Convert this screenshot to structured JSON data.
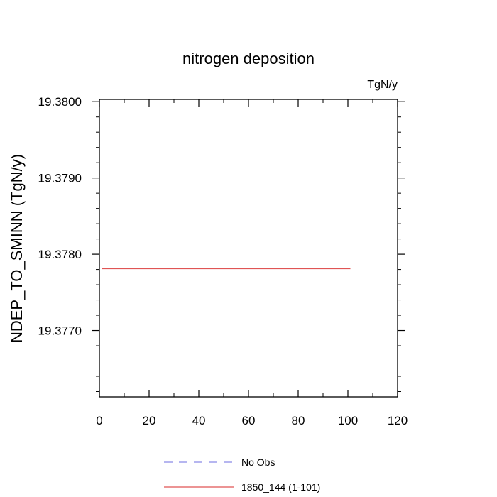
{
  "chart_data": {
    "type": "line",
    "title": "nitrogen deposition",
    "units_label": "TgN/y",
    "ylabel": "NDEP_TO_SMINN  (TgN/y)",
    "xlabel": "",
    "xlim": [
      0,
      120
    ],
    "ylim": [
      19.37613,
      19.38003
    ],
    "x_ticks": [
      0,
      20,
      40,
      60,
      80,
      100,
      120
    ],
    "x_tick_labels": [
      "0",
      "20",
      "40",
      "60",
      "80",
      "100",
      "120"
    ],
    "y_ticks": [
      19.377,
      19.378,
      19.379,
      19.38
    ],
    "y_tick_labels": [
      "19.3770",
      "19.3780",
      "19.3790",
      "19.3800"
    ],
    "grid": false,
    "legend_position": "bottom",
    "series": [
      {
        "name": "No Obs",
        "color": "#8a8ae6",
        "dash": "dashed",
        "x": [],
        "y": []
      },
      {
        "name": "1850_144 (1-101)",
        "color": "#e05555",
        "dash": "solid",
        "x": [
          1,
          101
        ],
        "y": [
          19.37781,
          19.37781
        ]
      }
    ]
  }
}
